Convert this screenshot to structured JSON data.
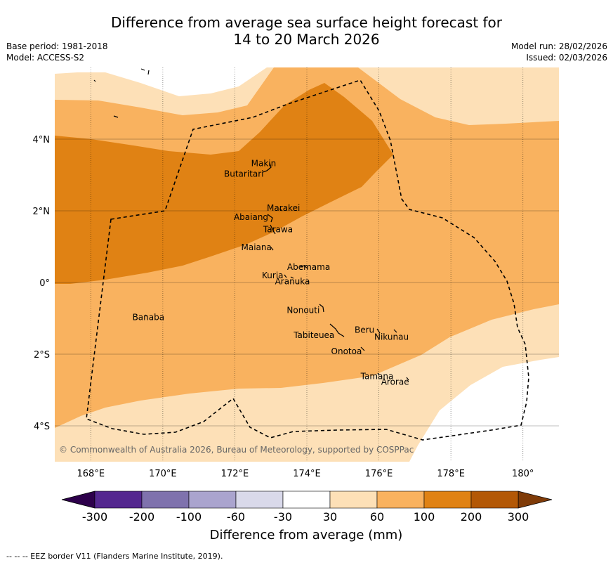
{
  "title_line1": "Difference from average sea surface height forecast for",
  "title_line2": "14 to 20 March 2026",
  "base_period": "Base period: 1981-2018",
  "model": "Model: ACCESS-S2",
  "model_run": "Model run: 28/02/2026",
  "issued": "Issued: 02/03/2026",
  "credit": "© Commonwealth of Australia 2026, Bureau of Meteorology, supported by COSPPac",
  "colorbar_label": "Difference from average (mm)",
  "eez_note": "--  --  -- EEZ border V11 (Flanders Marine Institute, 2019).",
  "axes": {
    "lon_ticks": [
      {
        "value": 168,
        "label": "168°E"
      },
      {
        "value": 170,
        "label": "170°E"
      },
      {
        "value": 172,
        "label": "172°E"
      },
      {
        "value": 174,
        "label": "174°E"
      },
      {
        "value": 176,
        "label": "176°E"
      },
      {
        "value": 178,
        "label": "178°E"
      },
      {
        "value": 180,
        "label": "180°"
      }
    ],
    "lat_ticks": [
      {
        "value": 4,
        "label": "4°N"
      },
      {
        "value": 2,
        "label": "2°N"
      },
      {
        "value": 0,
        "label": "0°"
      },
      {
        "value": -2,
        "label": "2°S"
      },
      {
        "value": -4,
        "label": "4°S"
      }
    ]
  },
  "colorbar": {
    "ticks": [
      "-300",
      "-200",
      "-100",
      "-60",
      "-30",
      "30",
      "60",
      "100",
      "200",
      "300"
    ],
    "colors": [
      "#54278f",
      "#7f72ad",
      "#aaa4ce",
      "#d9d9ea",
      "#ffffff",
      "#fde0b7",
      "#f9b25f",
      "#e08214",
      "#b35806"
    ],
    "under_color": "#2d004b",
    "over_color": "#7f3b08"
  },
  "islands": [
    {
      "name": "Makin",
      "lon": 172.8,
      "lat": 3.25
    },
    {
      "name": "Butaritari",
      "lon": 172.25,
      "lat": 2.95
    },
    {
      "name": "Marakei",
      "lon": 173.35,
      "lat": 2.0
    },
    {
      "name": "Abaiang",
      "lon": 172.45,
      "lat": 1.75
    },
    {
      "name": "Tarawa",
      "lon": 173.2,
      "lat": 1.4
    },
    {
      "name": "Maiana",
      "lon": 172.6,
      "lat": 0.9
    },
    {
      "name": "Abemama",
      "lon": 174.05,
      "lat": 0.35
    },
    {
      "name": "Kuria",
      "lon": 173.05,
      "lat": 0.12
    },
    {
      "name": "Aranuka",
      "lon": 173.6,
      "lat": -0.05
    },
    {
      "name": "Nonouti",
      "lon": 173.9,
      "lat": -0.85
    },
    {
      "name": "Banaba",
      "lon": 169.6,
      "lat": -1.05
    },
    {
      "name": "Beru",
      "lon": 175.6,
      "lat": -1.4
    },
    {
      "name": "Nikunau",
      "lon": 176.35,
      "lat": -1.6
    },
    {
      "name": "Tabiteuea",
      "lon": 174.2,
      "lat": -1.55
    },
    {
      "name": "Onotoa",
      "lon": 175.1,
      "lat": -2.0
    },
    {
      "name": "Tamana",
      "lon": 175.95,
      "lat": -2.7
    },
    {
      "name": "Arorae",
      "lon": 176.45,
      "lat": -2.85
    }
  ]
}
